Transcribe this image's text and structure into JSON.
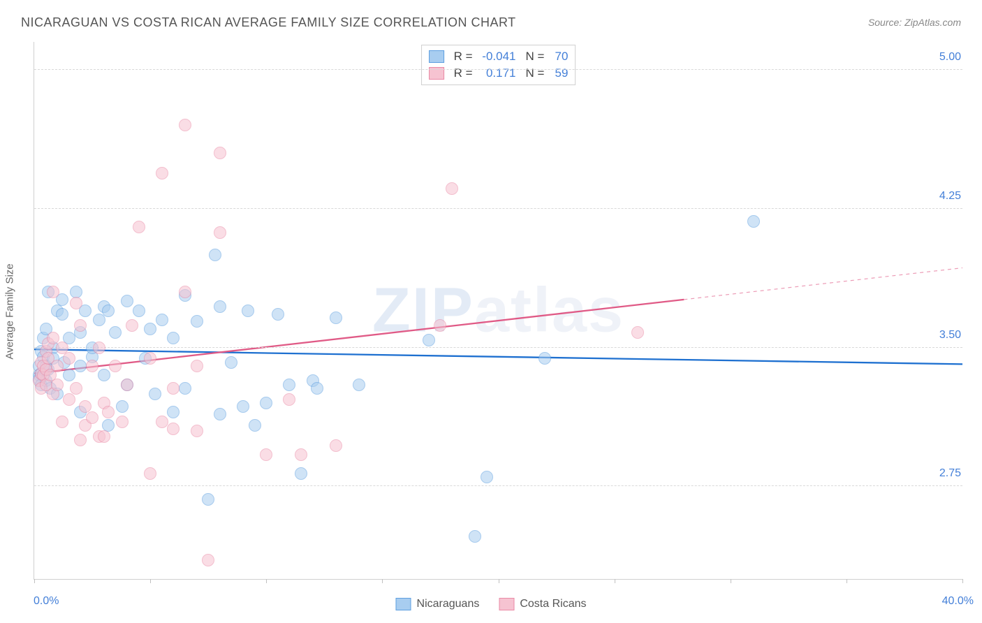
{
  "header": {
    "title": "NICARAGUAN VS COSTA RICAN AVERAGE FAMILY SIZE CORRELATION CHART",
    "source": "Source: ZipAtlas.com"
  },
  "watermark": {
    "prefix": "ZIP",
    "suffix": "atlas"
  },
  "ylabel": "Average Family Size",
  "chart": {
    "type": "scatter",
    "background_color": "#ffffff",
    "grid_color": "#d8d8d8",
    "axis_color": "#d0d0d0",
    "label_fontsize": 15,
    "tick_fontsize": 16,
    "tick_color": "#437fd8",
    "xlim": [
      0,
      40
    ],
    "ylim": [
      2.25,
      5.15
    ],
    "xticks": [
      0,
      5,
      10,
      15,
      20,
      25,
      30,
      35,
      40
    ],
    "xlim_labels": {
      "min": "0.0%",
      "max": "40.0%"
    },
    "yticks": [
      2.75,
      3.5,
      4.25,
      5.0
    ],
    "ytick_labels": [
      "2.75",
      "3.50",
      "4.25",
      "5.00"
    ],
    "marker_radius": 9,
    "marker_opacity": 0.55,
    "trend_line_width": 2.3
  },
  "series": [
    {
      "id": "nicaraguans",
      "label": "Nicaraguans",
      "fill": "#a8cdf0",
      "stroke": "#5e9fe0",
      "trend_color": "#1e70d0",
      "r": "-0.041",
      "n": "70",
      "trend": {
        "x1": 0,
        "y1": 3.49,
        "x2": 40,
        "y2": 3.41,
        "dash_from_x": 40
      },
      "points": [
        [
          0.2,
          3.4
        ],
        [
          0.2,
          3.35
        ],
        [
          0.2,
          3.33
        ],
        [
          0.3,
          3.48
        ],
        [
          0.3,
          3.3
        ],
        [
          0.3,
          3.36
        ],
        [
          0.4,
          3.45
        ],
        [
          0.4,
          3.55
        ],
        [
          0.5,
          3.6
        ],
        [
          0.5,
          3.4
        ],
        [
          0.5,
          3.32
        ],
        [
          0.6,
          3.38
        ],
        [
          0.7,
          3.28
        ],
        [
          0.8,
          3.5
        ],
        [
          0.8,
          3.44
        ],
        [
          1.0,
          3.7
        ],
        [
          1.0,
          3.25
        ],
        [
          1.2,
          3.76
        ],
        [
          1.2,
          3.68
        ],
        [
          1.3,
          3.42
        ],
        [
          1.5,
          3.55
        ],
        [
          1.5,
          3.35
        ],
        [
          1.8,
          3.8
        ],
        [
          2.0,
          3.58
        ],
        [
          2.0,
          3.4
        ],
        [
          2.0,
          3.15
        ],
        [
          2.2,
          3.7
        ],
        [
          2.5,
          3.45
        ],
        [
          2.5,
          3.5
        ],
        [
          2.8,
          3.65
        ],
        [
          3.0,
          3.72
        ],
        [
          3.0,
          3.35
        ],
        [
          3.2,
          3.7
        ],
        [
          3.2,
          3.08
        ],
        [
          3.5,
          3.58
        ],
        [
          3.8,
          3.18
        ],
        [
          4.0,
          3.75
        ],
        [
          4.0,
          3.3
        ],
        [
          4.5,
          3.7
        ],
        [
          4.8,
          3.44
        ],
        [
          5.0,
          3.6
        ],
        [
          5.2,
          3.25
        ],
        [
          5.5,
          3.65
        ],
        [
          6.0,
          3.15
        ],
        [
          6.0,
          3.55
        ],
        [
          6.5,
          3.78
        ],
        [
          6.5,
          3.28
        ],
        [
          7.0,
          3.64
        ],
        [
          7.5,
          2.68
        ],
        [
          7.8,
          4.0
        ],
        [
          8.0,
          3.72
        ],
        [
          8.0,
          3.14
        ],
        [
          8.5,
          3.42
        ],
        [
          9.0,
          3.18
        ],
        [
          9.2,
          3.7
        ],
        [
          9.5,
          3.08
        ],
        [
          10.0,
          3.2
        ],
        [
          10.5,
          3.68
        ],
        [
          11.0,
          3.3
        ],
        [
          11.5,
          2.82
        ],
        [
          12.0,
          3.32
        ],
        [
          12.2,
          3.28
        ],
        [
          13.0,
          3.66
        ],
        [
          14.0,
          3.3
        ],
        [
          17.0,
          3.54
        ],
        [
          19.0,
          2.48
        ],
        [
          19.5,
          2.8
        ],
        [
          22.0,
          3.44
        ],
        [
          31.0,
          4.18
        ],
        [
          0.6,
          3.8
        ]
      ]
    },
    {
      "id": "costaricans",
      "label": "Costa Ricans",
      "fill": "#f6c3d1",
      "stroke": "#ea8aa6",
      "trend_color": "#e05a86",
      "r": "0.171",
      "n": "59",
      "trend": {
        "x1": 0,
        "y1": 3.36,
        "x2": 40,
        "y2": 3.93,
        "dash_from_x": 28
      },
      "points": [
        [
          0.2,
          3.32
        ],
        [
          0.3,
          3.28
        ],
        [
          0.3,
          3.36
        ],
        [
          0.3,
          3.42
        ],
        [
          0.4,
          3.35
        ],
        [
          0.4,
          3.4
        ],
        [
          0.5,
          3.3
        ],
        [
          0.5,
          3.38
        ],
        [
          0.5,
          3.48
        ],
        [
          0.6,
          3.44
        ],
        [
          0.6,
          3.52
        ],
        [
          0.7,
          3.35
        ],
        [
          0.8,
          3.25
        ],
        [
          0.8,
          3.55
        ],
        [
          0.8,
          3.8
        ],
        [
          1.0,
          3.3
        ],
        [
          1.0,
          3.4
        ],
        [
          1.2,
          3.5
        ],
        [
          1.2,
          3.1
        ],
        [
          1.5,
          3.22
        ],
        [
          1.5,
          3.44
        ],
        [
          1.8,
          3.28
        ],
        [
          1.8,
          3.74
        ],
        [
          2.0,
          3.0
        ],
        [
          2.0,
          3.62
        ],
        [
          2.2,
          3.08
        ],
        [
          2.2,
          3.18
        ],
        [
          2.5,
          3.12
        ],
        [
          2.5,
          3.4
        ],
        [
          2.8,
          3.02
        ],
        [
          2.8,
          3.5
        ],
        [
          3.0,
          3.2
        ],
        [
          3.0,
          3.02
        ],
        [
          3.2,
          3.15
        ],
        [
          3.5,
          3.4
        ],
        [
          3.8,
          3.1
        ],
        [
          4.0,
          3.3
        ],
        [
          4.2,
          3.62
        ],
        [
          4.5,
          4.15
        ],
        [
          5.0,
          3.44
        ],
        [
          5.0,
          2.82
        ],
        [
          5.5,
          3.1
        ],
        [
          5.5,
          4.44
        ],
        [
          6.0,
          3.06
        ],
        [
          6.0,
          3.28
        ],
        [
          6.5,
          3.8
        ],
        [
          6.5,
          4.7
        ],
        [
          7.0,
          3.05
        ],
        [
          7.0,
          3.4
        ],
        [
          7.5,
          2.35
        ],
        [
          8.0,
          4.12
        ],
        [
          8.0,
          4.55
        ],
        [
          10.0,
          2.92
        ],
        [
          11.0,
          3.22
        ],
        [
          11.5,
          2.92
        ],
        [
          13.0,
          2.97
        ],
        [
          17.5,
          3.62
        ],
        [
          18.0,
          4.36
        ],
        [
          26.0,
          3.58
        ]
      ]
    }
  ],
  "stats_labels": {
    "r": "R =",
    "n": "N ="
  }
}
